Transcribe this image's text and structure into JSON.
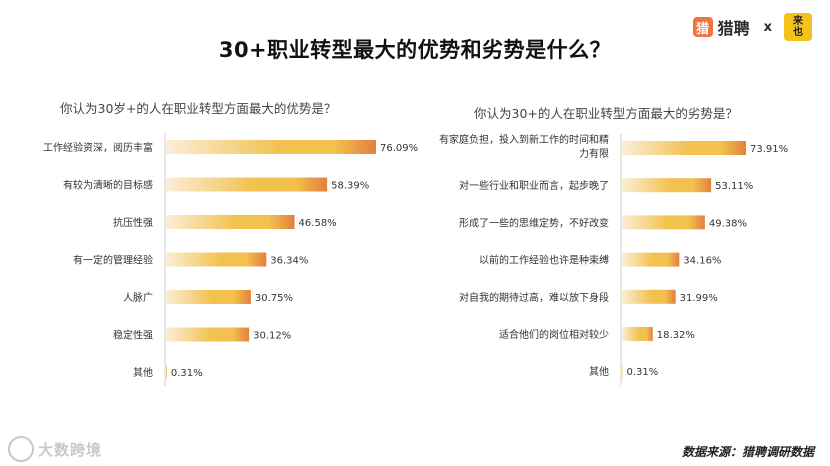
{
  "title": "30+职业转型最大的优势和劣势是什么？",
  "brand": {
    "name": "猎聘",
    "logo_char": "猎",
    "separator": "x",
    "partner_line1": "来",
    "partner_line2": "也"
  },
  "footer": {
    "watermark": "大数跨境",
    "source": "数据来源：猎聘调研数据"
  },
  "colors": {
    "bar_light": "#fbeed8",
    "bar_mid": "#f2c14e",
    "bar_dark": "#e47f3c",
    "text": "#333333"
  },
  "chart_data": [
    {
      "type": "bar",
      "orientation": "horizontal",
      "title": "你认为30岁+的人在职业转型方面最大的优势是？",
      "categories": [
        [
          "工作经验资深，阅历丰富"
        ],
        [
          "有较为清晰的目标感"
        ],
        [
          "抗压性强"
        ],
        [
          "有一定的管理经验"
        ],
        [
          "人脉广"
        ],
        [
          "稳定性强"
        ],
        [
          "其他"
        ]
      ],
      "values": [
        76.09,
        58.39,
        46.58,
        36.34,
        30.75,
        30.12,
        0.31
      ],
      "labels": [
        "76.09%",
        "58.39%",
        "46.58%",
        "36.34%",
        "30.75%",
        "30.12%",
        "0.31%"
      ],
      "unit": "%",
      "xlim": [
        0,
        100
      ]
    },
    {
      "type": "bar",
      "orientation": "horizontal",
      "title": "你认为30+的人在职业转型方面最大的劣势是？",
      "categories": [
        [
          "有家庭负担，投入到新工作的时间和精",
          "力有限"
        ],
        [
          "对一些行业和职业而言，起步晚了"
        ],
        [
          "形成了一些的思维定势，不好改变"
        ],
        [
          "以前的工作经验也许是种束缚"
        ],
        [
          "对自我的期待过高，难以放下身段"
        ],
        [
          "适合他们的岗位相对较少"
        ],
        [
          "其他"
        ]
      ],
      "values": [
        73.91,
        53.11,
        49.38,
        34.16,
        31.99,
        18.32,
        0.31
      ],
      "labels": [
        "73.91%",
        "53.11%",
        "49.38%",
        "34.16%",
        "31.99%",
        "18.32%",
        "0.31%"
      ],
      "unit": "%",
      "xlim": [
        0,
        100
      ]
    }
  ]
}
